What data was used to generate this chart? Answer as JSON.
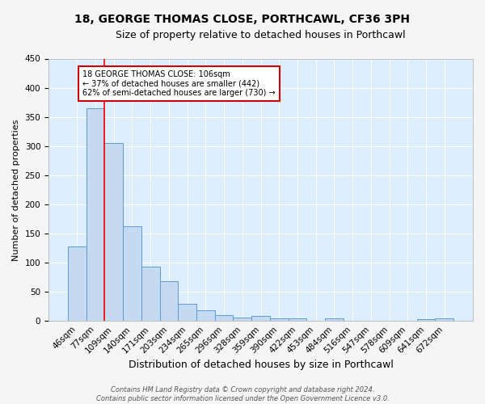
{
  "title": "18, GEORGE THOMAS CLOSE, PORTHCAWL, CF36 3PH",
  "subtitle": "Size of property relative to detached houses in Porthcawl",
  "xlabel": "Distribution of detached houses by size in Porthcawl",
  "ylabel": "Number of detached properties",
  "categories": [
    "46sqm",
    "77sqm",
    "109sqm",
    "140sqm",
    "171sqm",
    "203sqm",
    "234sqm",
    "265sqm",
    "296sqm",
    "328sqm",
    "359sqm",
    "390sqm",
    "422sqm",
    "453sqm",
    "484sqm",
    "516sqm",
    "547sqm",
    "578sqm",
    "609sqm",
    "641sqm",
    "672sqm"
  ],
  "values": [
    128,
    365,
    305,
    163,
    93,
    68,
    29,
    19,
    10,
    6,
    9,
    4,
    4,
    1,
    4,
    0,
    0,
    0,
    0,
    3,
    4
  ],
  "bar_color": "#c5d9f0",
  "bar_edge_color": "#5b9bd5",
  "red_line_index": 2,
  "annotation_line1": "18 GEORGE THOMAS CLOSE: 106sqm",
  "annotation_line2": "← 37% of detached houses are smaller (442)",
  "annotation_line3": "62% of semi-detached houses are larger (730) →",
  "annotation_box_color": "#ffffff",
  "annotation_box_edge": "#cc0000",
  "plot_bg_color": "#ddeeff",
  "fig_bg_color": "#f5f5f5",
  "grid_color": "#ffffff",
  "title_fontsize": 10,
  "subtitle_fontsize": 9,
  "xlabel_fontsize": 9,
  "ylabel_fontsize": 8,
  "tick_fontsize": 7.5,
  "annot_fontsize": 7,
  "footer_fontsize": 6,
  "footer_line1": "Contains HM Land Registry data © Crown copyright and database right 2024.",
  "footer_line2": "Contains public sector information licensed under the Open Government Licence v3.0.",
  "ylim": [
    0,
    450
  ]
}
